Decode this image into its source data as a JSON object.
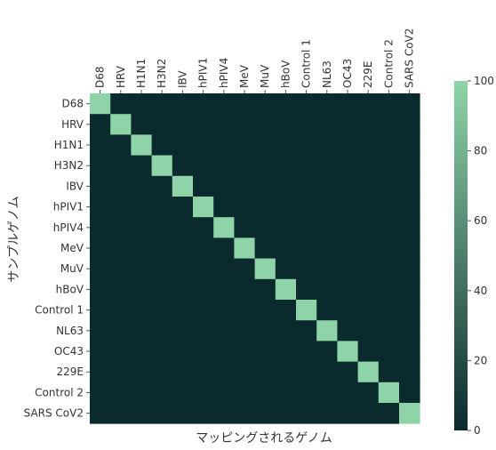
{
  "chart_data": {
    "type": "heatmap",
    "x_categories": [
      "D68",
      "HRV",
      "H1N1",
      "H3N2",
      "IBV",
      "hPIV1",
      "hPIV4",
      "MeV",
      "MuV",
      "hBoV",
      "Control 1",
      "NL63",
      "OC43",
      "229E",
      "Control 2",
      "SARS CoV2"
    ],
    "y_categories": [
      "D68",
      "HRV",
      "H1N1",
      "H3N2",
      "IBV",
      "hPIV1",
      "hPIV4",
      "MeV",
      "MuV",
      "hBoV",
      "Control 1",
      "NL63",
      "OC43",
      "229E",
      "Control 2",
      "SARS CoV2"
    ],
    "values": [
      [
        100,
        0,
        0,
        0,
        0,
        0,
        0,
        0,
        0,
        0,
        0,
        0,
        0,
        0,
        0,
        0
      ],
      [
        0,
        100,
        0,
        0,
        0,
        0,
        0,
        0,
        0,
        0,
        0,
        0,
        0,
        0,
        0,
        0
      ],
      [
        0,
        0,
        100,
        0,
        0,
        0,
        0,
        0,
        0,
        0,
        0,
        0,
        0,
        0,
        0,
        0
      ],
      [
        0,
        0,
        0,
        100,
        0,
        0,
        0,
        0,
        0,
        0,
        0,
        0,
        0,
        0,
        0,
        0
      ],
      [
        0,
        0,
        0,
        0,
        100,
        0,
        0,
        0,
        0,
        0,
        0,
        0,
        0,
        0,
        0,
        0
      ],
      [
        0,
        0,
        0,
        0,
        0,
        100,
        0,
        0,
        0,
        0,
        0,
        0,
        0,
        0,
        0,
        0
      ],
      [
        0,
        0,
        0,
        0,
        0,
        0,
        100,
        0,
        0,
        0,
        0,
        0,
        0,
        0,
        0,
        0
      ],
      [
        0,
        0,
        0,
        0,
        0,
        0,
        0,
        100,
        0,
        0,
        0,
        0,
        0,
        0,
        0,
        0
      ],
      [
        0,
        0,
        0,
        0,
        0,
        0,
        0,
        0,
        100,
        0,
        0,
        0,
        0,
        0,
        0,
        0
      ],
      [
        0,
        0,
        0,
        0,
        0,
        0,
        0,
        0,
        0,
        100,
        0,
        0,
        0,
        0,
        0,
        0
      ],
      [
        0,
        0,
        0,
        0,
        0,
        0,
        0,
        0,
        0,
        0,
        100,
        0,
        0,
        0,
        0,
        0
      ],
      [
        0,
        0,
        0,
        0,
        0,
        0,
        0,
        0,
        0,
        0,
        0,
        100,
        0,
        0,
        0,
        0
      ],
      [
        0,
        0,
        0,
        0,
        0,
        0,
        0,
        0,
        0,
        0,
        0,
        0,
        100,
        0,
        0,
        0
      ],
      [
        0,
        0,
        0,
        0,
        0,
        0,
        0,
        0,
        0,
        0,
        0,
        0,
        0,
        100,
        0,
        0
      ],
      [
        0,
        0,
        0,
        0,
        0,
        0,
        0,
        0,
        0,
        0,
        0,
        0,
        0,
        0,
        100,
        0
      ],
      [
        0,
        0,
        0,
        0,
        0,
        0,
        0,
        0,
        0,
        0,
        0,
        0,
        0,
        0,
        0,
        100
      ]
    ],
    "xlabel": "マッピングされるゲノム",
    "ylabel": "サンプルゲノム",
    "x_tick_position": "top",
    "colorbar": {
      "min": 0,
      "max": 100,
      "ticks": [
        0,
        20,
        40,
        60,
        80,
        100
      ],
      "low_color": "#0b2a2e",
      "high_color": "#8fd4a8"
    },
    "grid": false
  }
}
